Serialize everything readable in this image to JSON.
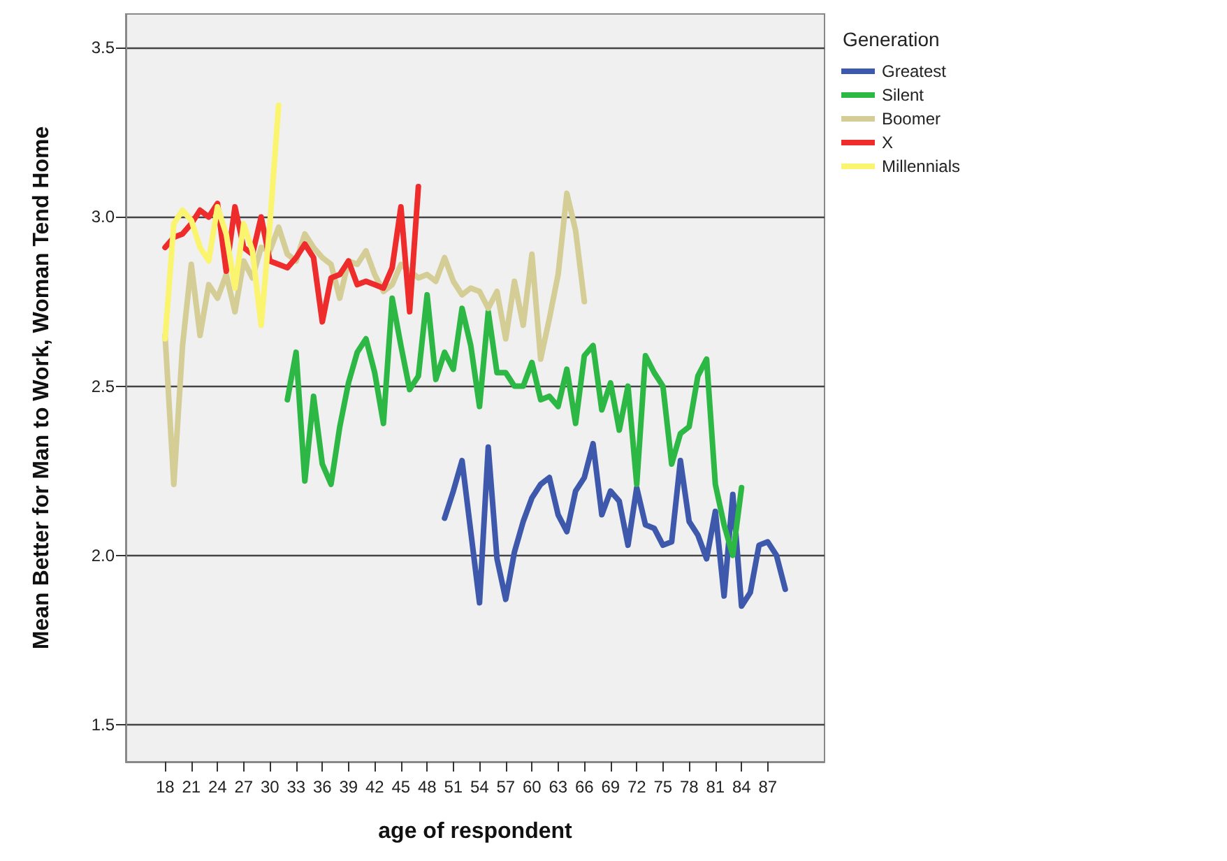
{
  "chart_data": {
    "type": "line",
    "xlabel": "age of respondent",
    "ylabel": "Mean Better for Man to Work, Woman Tend Home",
    "legend_title": "Generation",
    "legend": "top right",
    "grid": "y",
    "marker": "none",
    "line_style": "solid",
    "xlim": [
      13.5,
      93.5
    ],
    "xticks": [
      18,
      21,
      24,
      27,
      30,
      33,
      36,
      39,
      42,
      45,
      48,
      51,
      54,
      57,
      60,
      63,
      66,
      69,
      72,
      75,
      78,
      81,
      84,
      87
    ],
    "ylim": [
      1.39,
      3.6
    ],
    "yticks": [
      1.5,
      {
        "value": 2,
        "label": "2.0"
      },
      2.5,
      {
        "value": 3,
        "label": "3.0"
      },
      3.5
    ],
    "series": [
      {
        "name": "Greatest",
        "color": "#3e58ac",
        "x": [
          50,
          51,
          52,
          53,
          54,
          55,
          56,
          57,
          58,
          59,
          60,
          61,
          62,
          63,
          64,
          65,
          66,
          67,
          68,
          69,
          70,
          71,
          72,
          73,
          74,
          75,
          76,
          77,
          78,
          79,
          80,
          81,
          82,
          83,
          84,
          85,
          86,
          87,
          88,
          89
        ],
        "values": [
          2.11,
          2.19,
          2.28,
          2.07,
          1.86,
          2.32,
          1.99,
          1.87,
          2.01,
          2.1,
          2.17,
          2.21,
          2.23,
          2.12,
          2.07,
          2.19,
          2.23,
          2.33,
          2.12,
          2.19,
          2.16,
          2.03,
          2.2,
          2.09,
          2.08,
          2.03,
          2.04,
          2.28,
          2.1,
          2.06,
          1.99,
          2.13,
          1.88,
          2.18,
          1.85,
          1.89,
          2.03,
          2.04,
          2.0,
          1.9
        ]
      },
      {
        "name": "Silent",
        "color": "#2db744",
        "x": [
          32,
          33,
          34,
          35,
          36,
          37,
          38,
          39,
          40,
          41,
          42,
          43,
          44,
          45,
          46,
          47,
          48,
          49,
          50,
          51,
          52,
          53,
          54,
          55,
          56,
          57,
          58,
          59,
          60,
          61,
          62,
          63,
          64,
          65,
          66,
          67,
          68,
          69,
          70,
          71,
          72,
          73,
          74,
          75,
          76,
          77,
          78,
          79,
          80,
          81,
          82,
          83,
          84
        ],
        "values": [
          2.46,
          2.6,
          2.22,
          2.47,
          2.27,
          2.21,
          2.38,
          2.51,
          2.6,
          2.64,
          2.54,
          2.39,
          2.76,
          2.62,
          2.49,
          2.53,
          2.77,
          2.52,
          2.6,
          2.55,
          2.73,
          2.62,
          2.44,
          2.72,
          2.54,
          2.54,
          2.5,
          2.5,
          2.57,
          2.46,
          2.47,
          2.44,
          2.55,
          2.39,
          2.59,
          2.62,
          2.43,
          2.51,
          2.37,
          2.5,
          2.21,
          2.59,
          2.54,
          2.5,
          2.27,
          2.36,
          2.38,
          2.53,
          2.58,
          2.21,
          2.09,
          2.0,
          2.2
        ]
      },
      {
        "name": "Boomer",
        "color": "#d4cd95",
        "x": [
          18,
          19,
          20,
          21,
          22,
          23,
          24,
          25,
          26,
          27,
          28,
          29,
          30,
          31,
          32,
          33,
          34,
          35,
          36,
          37,
          38,
          39,
          40,
          41,
          42,
          43,
          44,
          45,
          46,
          47,
          48,
          49,
          50,
          51,
          52,
          53,
          54,
          55,
          56,
          57,
          58,
          59,
          60,
          61,
          62,
          63,
          64,
          65,
          66
        ],
        "values": [
          2.65,
          2.21,
          2.62,
          2.86,
          2.65,
          2.8,
          2.76,
          2.83,
          2.72,
          2.87,
          2.82,
          2.91,
          2.9,
          2.97,
          2.89,
          2.87,
          2.95,
          2.91,
          2.88,
          2.86,
          2.76,
          2.87,
          2.86,
          2.9,
          2.83,
          2.78,
          2.8,
          2.86,
          2.84,
          2.82,
          2.83,
          2.81,
          2.88,
          2.81,
          2.77,
          2.79,
          2.78,
          2.73,
          2.78,
          2.64,
          2.81,
          2.68,
          2.89,
          2.58,
          2.7,
          2.83,
          3.07,
          2.96,
          2.75
        ]
      },
      {
        "name": "X",
        "color": "#ee2c2c",
        "x": [
          18,
          19,
          20,
          21,
          22,
          23,
          24,
          25,
          26,
          27,
          28,
          29,
          30,
          31,
          32,
          33,
          34,
          35,
          36,
          37,
          38,
          39,
          40,
          41,
          42,
          43,
          44,
          45,
          46,
          47
        ],
        "values": [
          2.91,
          2.94,
          2.95,
          2.98,
          3.02,
          3.0,
          3.04,
          2.84,
          3.03,
          2.91,
          2.89,
          3.0,
          2.87,
          2.86,
          2.85,
          2.88,
          2.92,
          2.88,
          2.69,
          2.82,
          2.83,
          2.87,
          2.8,
          2.81,
          2.8,
          2.79,
          2.85,
          3.03,
          2.72,
          3.09
        ]
      },
      {
        "name": "Millennials",
        "color": "#fbf46e",
        "x": [
          18,
          19,
          20,
          21,
          22,
          23,
          24,
          25,
          26,
          27,
          28,
          29,
          30,
          31
        ],
        "values": [
          2.64,
          2.98,
          3.02,
          2.99,
          2.91,
          2.87,
          3.03,
          2.95,
          2.79,
          2.98,
          2.9,
          2.68,
          2.98,
          3.33
        ]
      }
    ]
  }
}
